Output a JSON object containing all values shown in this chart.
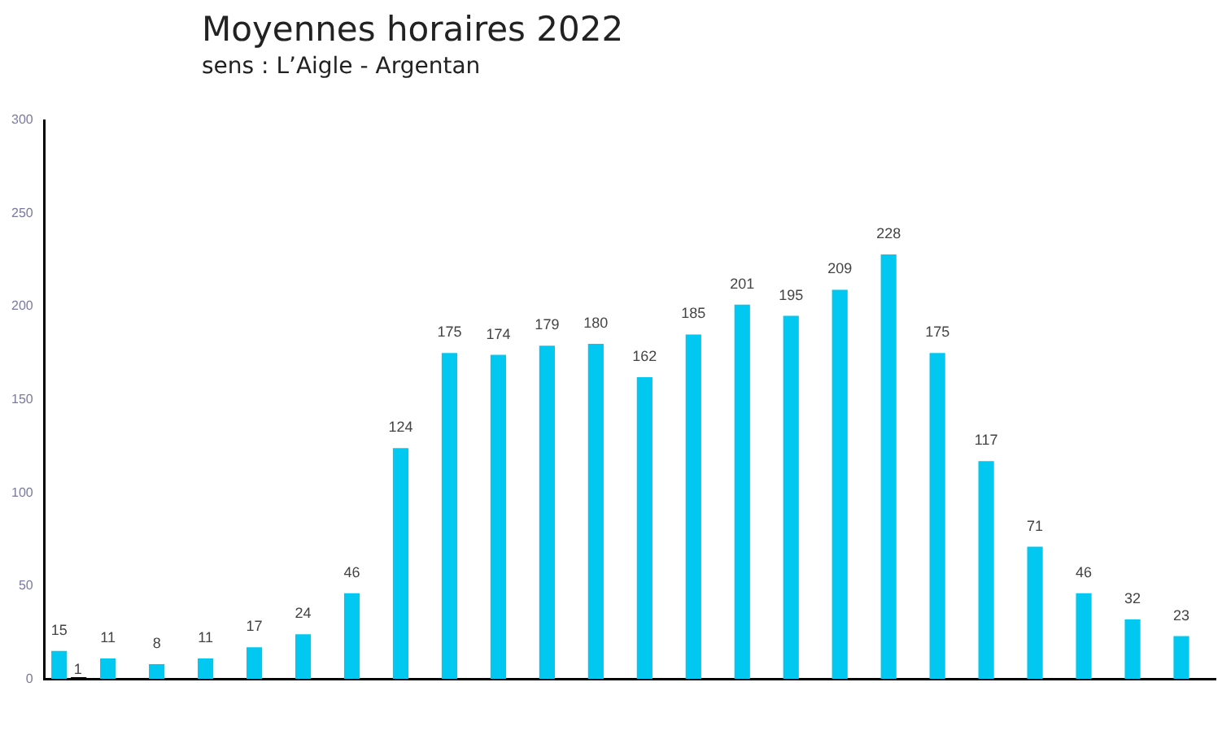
{
  "chart_data": {
    "type": "bar",
    "title": "Moyennes horaires 2022",
    "subtitle": "sens : L’Aigle - Argentan",
    "categories": [
      null,
      null,
      null,
      null,
      null,
      null,
      null,
      null,
      null,
      null,
      null,
      null,
      null,
      null,
      null,
      null,
      null,
      null,
      null,
      null,
      null,
      null,
      null,
      null
    ],
    "series": [
      {
        "color": "#00c8f0",
        "values": [
          15,
          11,
          8,
          11,
          17,
          24,
          46,
          124,
          175,
          174,
          179,
          180,
          162,
          185,
          201,
          195,
          209,
          228,
          175,
          117,
          71,
          46,
          32,
          23
        ]
      },
      {
        "color": "#000000",
        "values": [
          1,
          null,
          null,
          null,
          null,
          null,
          null,
          null,
          null,
          null,
          null,
          null,
          null,
          null,
          null,
          null,
          null,
          null,
          null,
          null,
          null,
          null,
          null,
          null
        ]
      }
    ],
    "ylim": [
      0,
      300
    ],
    "yticks": [
      0,
      50,
      100,
      150,
      200,
      250,
      300
    ],
    "grid": false,
    "legend": false,
    "data_labels": true
  }
}
